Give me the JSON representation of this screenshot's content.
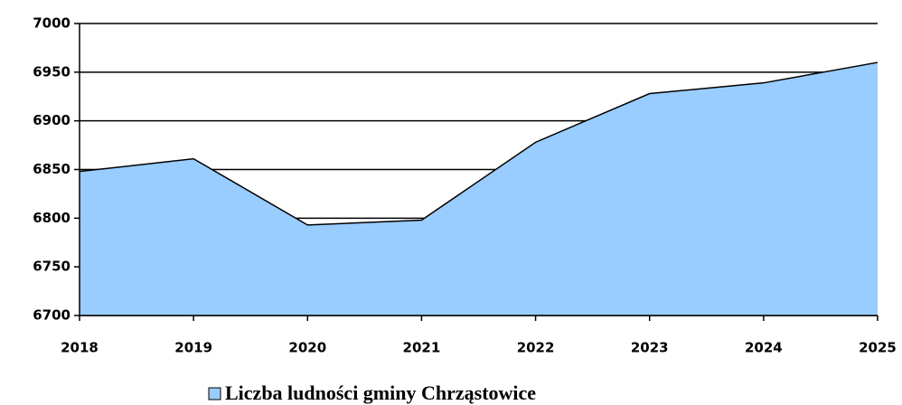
{
  "chart_data": {
    "type": "area",
    "categories": [
      "2018",
      "2019",
      "2020",
      "2021",
      "2022",
      "2023",
      "2024",
      "2025"
    ],
    "series": [
      {
        "name": "Liczba ludności gminy Chrząstowice",
        "color": "#99ccff",
        "values": [
          6848,
          6861,
          6793,
          6798,
          6878,
          6928,
          6939,
          6960
        ]
      }
    ],
    "ylim": [
      6700,
      7000
    ],
    "yticks": [
      6700,
      6750,
      6800,
      6850,
      6900,
      6950,
      7000
    ],
    "grid": true,
    "legend": "bottom"
  }
}
